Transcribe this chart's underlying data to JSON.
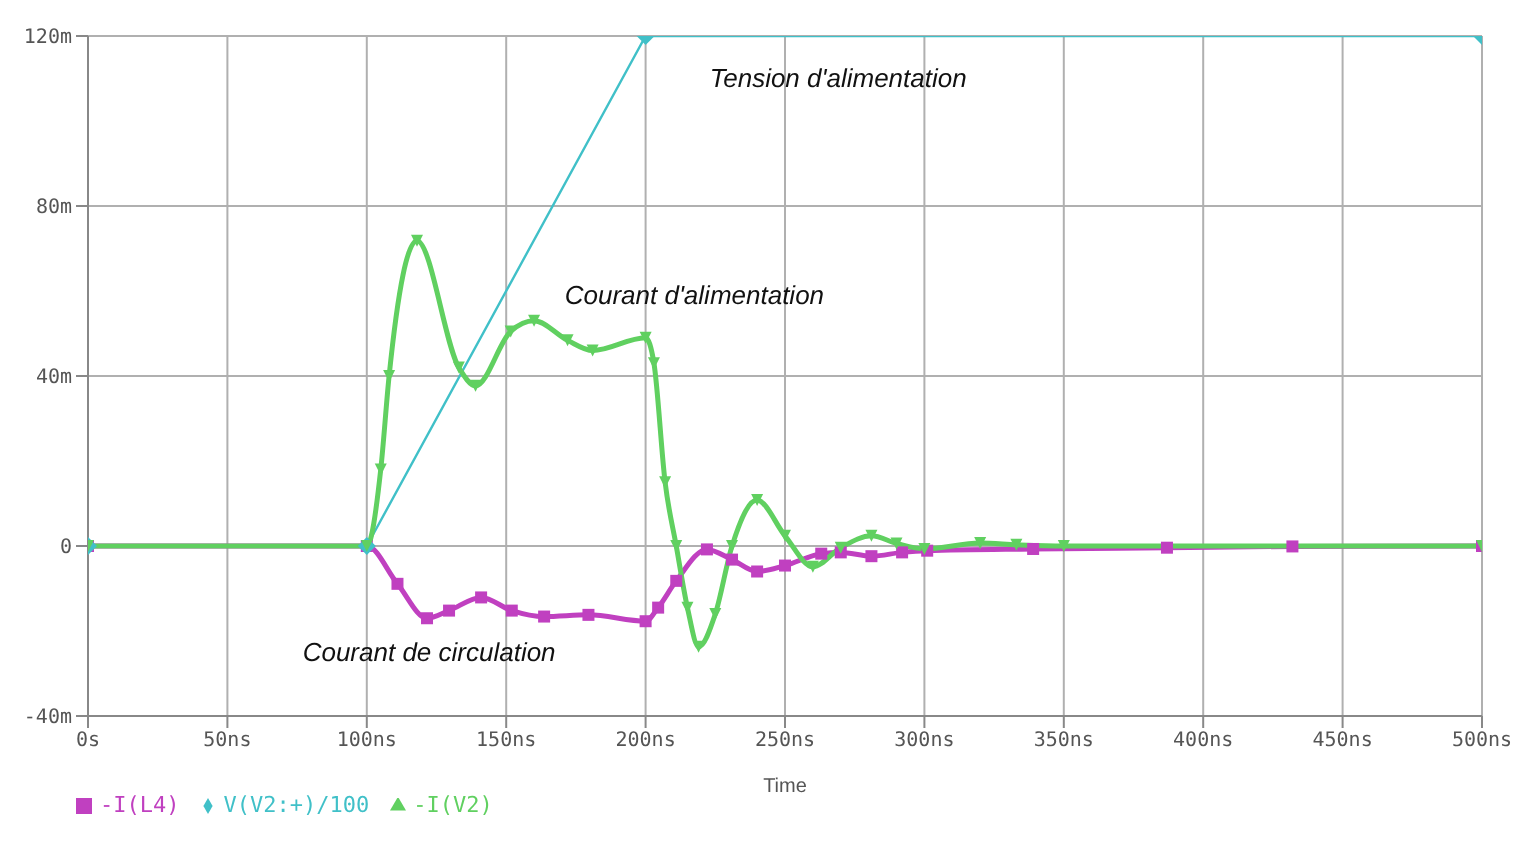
{
  "chart_data": {
    "type": "line",
    "xlabel": "Time",
    "xlim": [
      0,
      500
    ],
    "xticks": [
      {
        "value": 0,
        "label": "0s"
      },
      {
        "value": 50,
        "label": "50ns"
      },
      {
        "value": 100,
        "label": "100ns"
      },
      {
        "value": 150,
        "label": "150ns"
      },
      {
        "value": 200,
        "label": "200ns"
      },
      {
        "value": 250,
        "label": "250ns"
      },
      {
        "value": 300,
        "label": "300ns"
      },
      {
        "value": 350,
        "label": "350ns"
      },
      {
        "value": 400,
        "label": "400ns"
      },
      {
        "value": 450,
        "label": "450ns"
      },
      {
        "value": 500,
        "label": "500ns"
      }
    ],
    "ylim": [
      -40,
      120
    ],
    "yticks": [
      {
        "value": -40,
        "label": "-40m"
      },
      {
        "value": 0,
        "label": "0"
      },
      {
        "value": 40,
        "label": "40m"
      },
      {
        "value": 80,
        "label": "80m"
      },
      {
        "value": 120,
        "label": "120m"
      }
    ],
    "grid": true,
    "legend": "bottom left",
    "line_style": "solid",
    "series": [
      {
        "name": "-I(L4)",
        "color": "#c040c0",
        "marker": "square",
        "x": [
          0,
          100,
          111,
          121.6,
          129.5,
          141,
          152,
          163.6,
          179.5,
          200,
          204.5,
          211,
          222,
          231,
          240,
          250,
          263,
          270,
          281,
          292,
          301,
          339,
          387,
          432,
          500
        ],
        "values": [
          0,
          0,
          -8.9,
          -17,
          -15.2,
          -12.1,
          -15.2,
          -16.6,
          -16.2,
          -17.7,
          -14.5,
          -8.2,
          -0.8,
          -3.2,
          -6,
          -4.6,
          -1.8,
          -1.5,
          -2.4,
          -1.5,
          -1.1,
          -0.7,
          -0.4,
          -0.1,
          0
        ]
      },
      {
        "name": "V(V2:+)/100",
        "color": "#40c0c8",
        "marker": "diamond",
        "x": [
          0,
          100,
          200,
          500
        ],
        "values": [
          0,
          0,
          120,
          120
        ]
      },
      {
        "name": "-I(V2)",
        "color": "#60d060",
        "marker": "triangle",
        "x": [
          0,
          100,
          105,
          108,
          118,
          133,
          139,
          151.6,
          160,
          172,
          181,
          200,
          203,
          207,
          211,
          215,
          219,
          225,
          231,
          240,
          250,
          260,
          270,
          281,
          290,
          300,
          320,
          333,
          350,
          500
        ],
        "values": [
          0,
          0,
          18,
          40,
          71.8,
          42,
          37.7,
          50.5,
          53,
          48.4,
          46,
          49,
          43,
          15,
          0,
          -14.5,
          -23.7,
          -16,
          0,
          10.8,
          2.4,
          -4.9,
          -0.4,
          2.4,
          0.6,
          -0.7,
          0.7,
          0.3,
          0,
          0
        ]
      }
    ],
    "annotations": [
      "Tension d'alimentation",
      "Courant d'alimentation",
      "Courant de circulation"
    ]
  }
}
